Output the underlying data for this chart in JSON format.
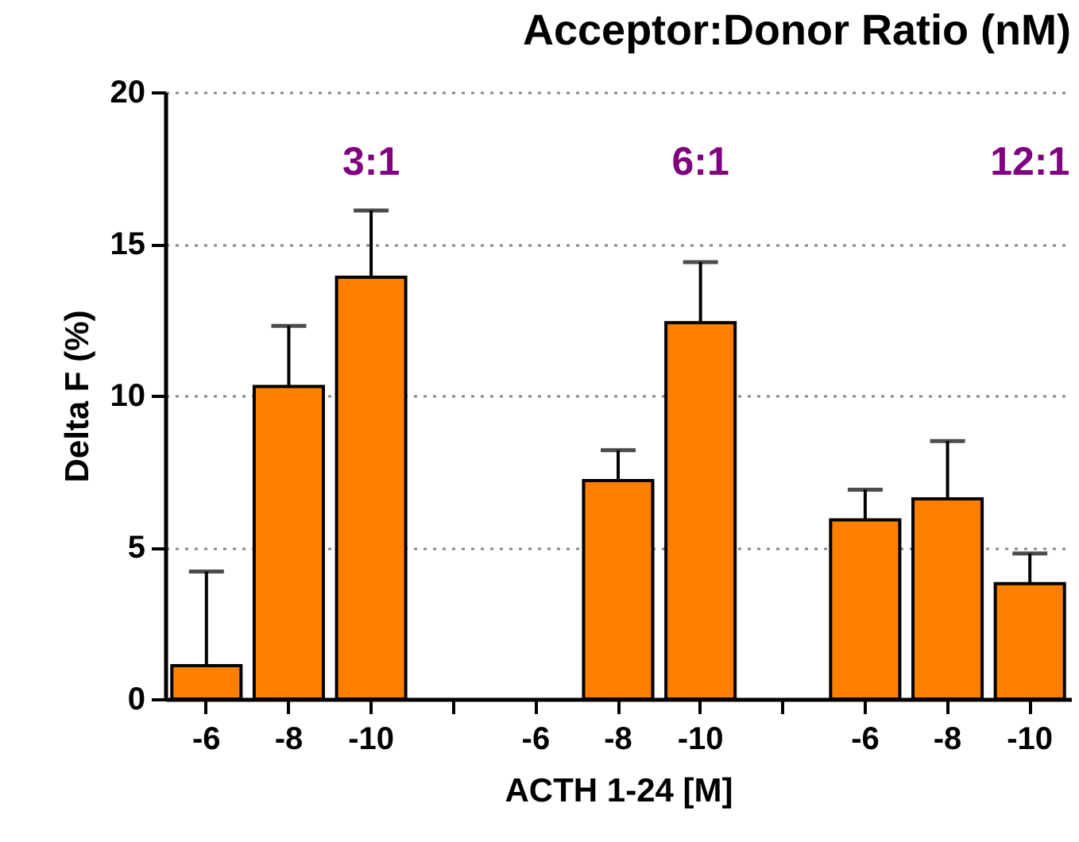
{
  "chart_data": {
    "type": "bar",
    "title": "Acceptor:Donor Ratio (nM)",
    "xlabel": "ACTH 1-24 [M]",
    "ylabel": "Delta F (%)",
    "categories": [
      "-6",
      "-8",
      "-10",
      null,
      "-6",
      "-8",
      "-10",
      null,
      "-6",
      "-8",
      "-10"
    ],
    "values": [
      1.1,
      10.3,
      13.9,
      null,
      null,
      7.2,
      12.4,
      null,
      5.9,
      6.6,
      3.8
    ],
    "errors": [
      [
        1.1,
        4.2
      ],
      [
        10.3,
        12.3
      ],
      [
        13.9,
        16.1
      ],
      null,
      null,
      [
        7.2,
        8.2
      ],
      [
        12.4,
        14.4
      ],
      null,
      [
        5.9,
        6.9
      ],
      [
        6.6,
        8.5
      ],
      [
        3.8,
        4.8
      ]
    ],
    "color": "#ff8000",
    "annotations": [
      "3:1",
      "6:1",
      "12:1"
    ],
    "ylim": [
      0,
      20
    ],
    "yticks": [
      0,
      5,
      10,
      15,
      20
    ],
    "grid": "y"
  }
}
